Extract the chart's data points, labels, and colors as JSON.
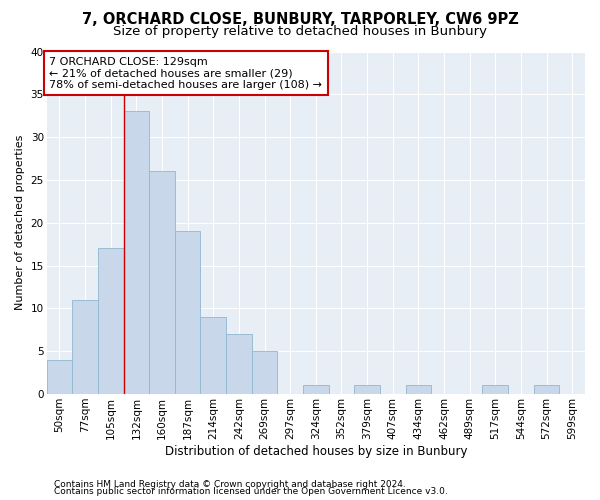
{
  "title1": "7, ORCHARD CLOSE, BUNBURY, TARPORLEY, CW6 9PZ",
  "title2": "Size of property relative to detached houses in Bunbury",
  "xlabel": "Distribution of detached houses by size in Bunbury",
  "ylabel": "Number of detached properties",
  "footnote1": "Contains HM Land Registry data © Crown copyright and database right 2024.",
  "footnote2": "Contains public sector information licensed under the Open Government Licence v3.0.",
  "categories": [
    "50sqm",
    "77sqm",
    "105sqm",
    "132sqm",
    "160sqm",
    "187sqm",
    "214sqm",
    "242sqm",
    "269sqm",
    "297sqm",
    "324sqm",
    "352sqm",
    "379sqm",
    "407sqm",
    "434sqm",
    "462sqm",
    "489sqm",
    "517sqm",
    "544sqm",
    "572sqm",
    "599sqm"
  ],
  "values": [
    4,
    11,
    17,
    33,
    26,
    19,
    9,
    7,
    5,
    0,
    1,
    0,
    1,
    0,
    1,
    0,
    0,
    1,
    0,
    1,
    0
  ],
  "bar_color": "#c8d8ea",
  "bar_edge_color": "#90b8d0",
  "bar_edge_width": 0.6,
  "annotation_line1": "7 ORCHARD CLOSE: 129sqm",
  "annotation_line2": "← 21% of detached houses are smaller (29)",
  "annotation_line3": "78% of semi-detached houses are larger (108) →",
  "annotation_box_facecolor": "#ffffff",
  "annotation_box_edgecolor": "#cc0000",
  "red_line_index": 2.5,
  "ylim": [
    0,
    40
  ],
  "yticks": [
    0,
    5,
    10,
    15,
    20,
    25,
    30,
    35,
    40
  ],
  "fig_bg": "#ffffff",
  "ax_bg": "#e8eef5",
  "grid_color": "#ffffff",
  "title1_fontsize": 10.5,
  "title2_fontsize": 9.5,
  "xlabel_fontsize": 8.5,
  "ylabel_fontsize": 8.0,
  "tick_fontsize": 7.5,
  "footnote_fontsize": 6.5,
  "annot_fontsize": 8.0
}
